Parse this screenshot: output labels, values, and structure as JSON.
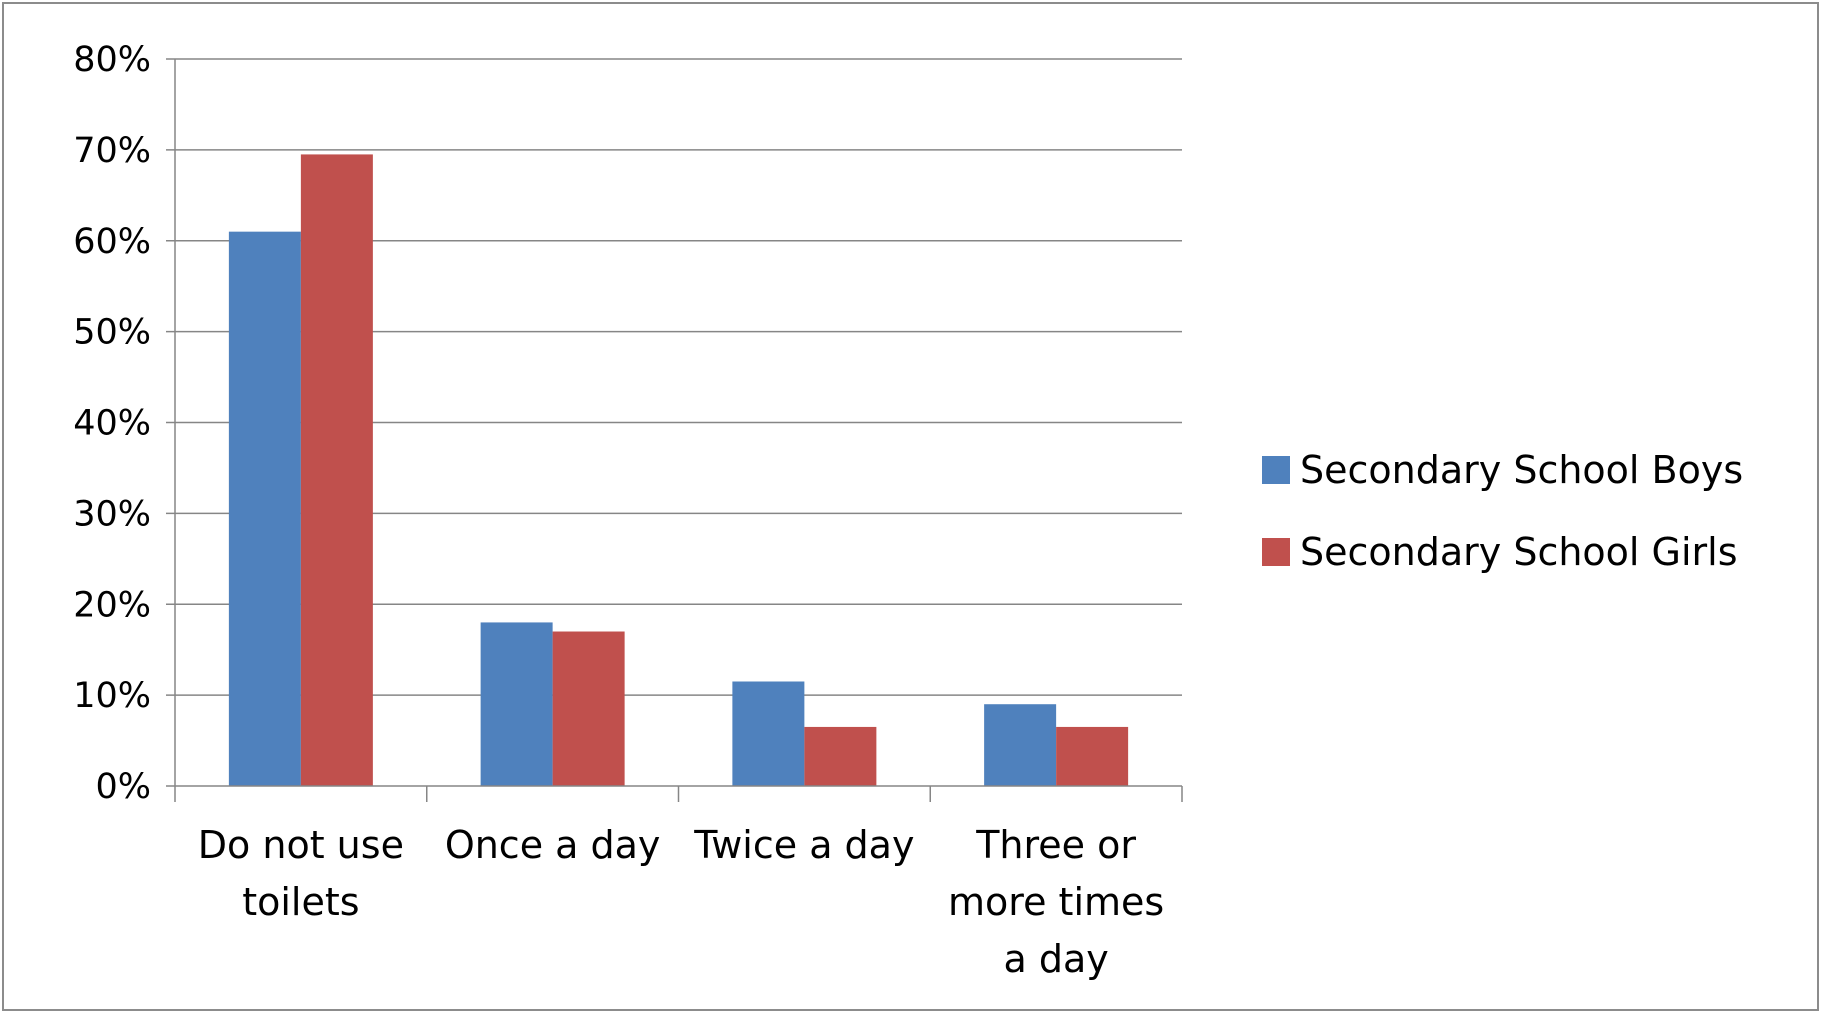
{
  "chart_data": {
    "type": "bar",
    "title": "",
    "xlabel": "",
    "ylabel": "",
    "categories": [
      "Do not use toilets",
      "Once a day",
      "Twice a day",
      "Three or more times a day"
    ],
    "category_lines": [
      [
        "Do not use",
        "toilets"
      ],
      [
        "Once a day"
      ],
      [
        "Twice a day"
      ],
      [
        "Three or",
        "more times",
        "a day"
      ]
    ],
    "series": [
      {
        "name": "Secondary School Boys",
        "color": "#4F81BD",
        "values": [
          61,
          18,
          11.5,
          9
        ]
      },
      {
        "name": "Secondary School Girls",
        "color": "#C0504D",
        "values": [
          69.5,
          17,
          6.5,
          6.5
        ]
      }
    ],
    "ylim": [
      0,
      80
    ],
    "yticks": [
      0,
      10,
      20,
      30,
      40,
      50,
      60,
      70,
      80
    ],
    "ytick_labels": [
      "0%",
      "10%",
      "20%",
      "30%",
      "40%",
      "50%",
      "60%",
      "70%",
      "80%"
    ],
    "grid": true,
    "legend_position": "right"
  }
}
